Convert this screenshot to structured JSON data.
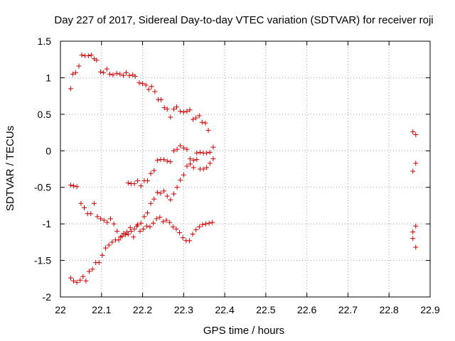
{
  "chart_data": {
    "type": "scatter",
    "title": "Day 227 of 2017, Sidereal Day-to-day VTEC variation (SDTVAR) for receiver roji",
    "xlabel": "GPS time / hours",
    "ylabel": "SDTVAR / TECUs",
    "xlim": [
      22,
      22.9
    ],
    "ylim": [
      -2,
      1.5
    ],
    "x_ticks": [
      "22",
      "22.1",
      "22.2",
      "22.3",
      "22.4",
      "22.5",
      "22.6",
      "22.7",
      "22.8",
      "22.9"
    ],
    "y_ticks": [
      "-2",
      "-1.5",
      "-1",
      "-0.5",
      "0",
      "0.5",
      "1",
      "1.5"
    ],
    "grid": true,
    "marker": "+",
    "marker_color": "#cc0000",
    "series": [
      {
        "points": [
          [
            22.025,
            0.85
          ],
          [
            22.03,
            1.05
          ],
          [
            22.037,
            1.07
          ],
          [
            22.045,
            1.16
          ],
          [
            22.052,
            1.31
          ],
          [
            22.06,
            1.3
          ],
          [
            22.068,
            1.3
          ],
          [
            22.075,
            1.31
          ],
          [
            22.082,
            1.26
          ],
          [
            22.088,
            1.24
          ],
          [
            22.098,
            1.08
          ],
          [
            22.105,
            1.07
          ],
          [
            22.113,
            1.12
          ],
          [
            22.12,
            1.05
          ],
          [
            22.128,
            1.04
          ],
          [
            22.137,
            1.06
          ],
          [
            22.145,
            1.05
          ],
          [
            22.153,
            1.03
          ],
          [
            22.16,
            1.07
          ],
          [
            22.168,
            1.03
          ],
          [
            22.176,
            1.04
          ],
          [
            22.182,
            1.02
          ],
          [
            22.192,
            0.93
          ],
          [
            22.2,
            0.92
          ],
          [
            22.208,
            0.9
          ],
          [
            22.215,
            0.84
          ],
          [
            22.222,
            0.88
          ],
          [
            22.23,
            0.81
          ],
          [
            22.238,
            0.7
          ],
          [
            22.245,
            0.7
          ],
          [
            22.253,
            0.59
          ],
          [
            22.26,
            0.57
          ],
          [
            22.268,
            0.46
          ],
          [
            22.276,
            0.57
          ],
          [
            22.283,
            0.6
          ],
          [
            22.292,
            0.54
          ],
          [
            22.3,
            0.53
          ],
          [
            22.308,
            0.54
          ],
          [
            22.315,
            0.56
          ],
          [
            22.323,
            0.43
          ],
          [
            22.33,
            0.45
          ],
          [
            22.338,
            0.48
          ],
          [
            22.345,
            0.39
          ],
          [
            22.353,
            0.38
          ],
          [
            22.36,
            0.28
          ]
        ]
      },
      {
        "points": [
          [
            22.025,
            -1.74
          ],
          [
            22.032,
            -1.78
          ],
          [
            22.04,
            -1.8
          ],
          [
            22.048,
            -1.77
          ],
          [
            22.055,
            -1.72
          ],
          [
            22.062,
            -1.78
          ],
          [
            22.07,
            -1.65
          ],
          [
            22.078,
            -1.62
          ],
          [
            22.086,
            -1.53
          ],
          [
            22.094,
            -1.53
          ],
          [
            22.102,
            -1.43
          ],
          [
            22.11,
            -1.33
          ],
          [
            22.118,
            -1.29
          ],
          [
            22.126,
            -1.25
          ],
          [
            22.134,
            -1.22
          ],
          [
            22.142,
            -1.22
          ],
          [
            22.15,
            -1.17
          ],
          [
            22.158,
            -1.15
          ],
          [
            22.165,
            -1.14
          ],
          [
            22.172,
            -1.1
          ],
          [
            22.18,
            -1.07
          ],
          [
            22.188,
            -1.01
          ],
          [
            22.196,
            -0.99
          ],
          [
            22.204,
            -0.9
          ],
          [
            22.212,
            -0.85
          ],
          [
            22.22,
            -0.72
          ],
          [
            22.228,
            -0.66
          ],
          [
            22.236,
            -0.57
          ],
          [
            22.244,
            -0.58
          ],
          [
            22.252,
            -0.55
          ],
          [
            22.26,
            -0.62
          ],
          [
            22.268,
            -0.67
          ],
          [
            22.276,
            -0.59
          ],
          [
            22.284,
            -0.5
          ],
          [
            22.292,
            -0.4
          ],
          [
            22.3,
            -0.33
          ],
          [
            22.308,
            -0.21
          ],
          [
            22.316,
            -0.18
          ],
          [
            22.324,
            -0.23
          ],
          [
            22.332,
            -0.12
          ],
          [
            22.34,
            -0.25
          ],
          [
            22.348,
            -0.25
          ],
          [
            22.356,
            -0.23
          ],
          [
            22.364,
            -0.17
          ],
          [
            22.372,
            -0.11
          ]
        ]
      },
      {
        "points": [
          [
            22.025,
            -0.47
          ],
          [
            22.032,
            -0.48
          ],
          [
            22.04,
            -0.49
          ],
          [
            22.05,
            -0.72
          ],
          [
            22.058,
            -0.78
          ],
          [
            22.066,
            -0.86
          ],
          [
            22.074,
            -0.86
          ],
          [
            22.082,
            -0.72
          ],
          [
            22.09,
            -0.9
          ],
          [
            22.098,
            -0.93
          ],
          [
            22.106,
            -0.95
          ],
          [
            22.114,
            -0.98
          ],
          [
            22.122,
            -0.93
          ],
          [
            22.13,
            -1.0
          ],
          [
            22.138,
            -1.1
          ],
          [
            22.146,
            -1.18
          ],
          [
            22.154,
            -1.13
          ],
          [
            22.162,
            -1.11
          ],
          [
            22.17,
            -1.05
          ],
          [
            22.178,
            -1.18
          ],
          [
            22.186,
            -1.03
          ],
          [
            22.194,
            -1.1
          ],
          [
            22.202,
            -1.07
          ],
          [
            22.21,
            -1.03
          ],
          [
            22.218,
            -1.04
          ],
          [
            22.226,
            -0.99
          ],
          [
            22.234,
            -0.93
          ],
          [
            22.242,
            -0.91
          ],
          [
            22.25,
            -0.97
          ],
          [
            22.258,
            -0.95
          ],
          [
            22.266,
            -0.98
          ],
          [
            22.274,
            -1.04
          ],
          [
            22.282,
            -1.07
          ],
          [
            22.29,
            -1.12
          ],
          [
            22.298,
            -1.19
          ],
          [
            22.306,
            -1.23
          ],
          [
            22.314,
            -1.23
          ],
          [
            22.322,
            -1.14
          ],
          [
            22.33,
            -1.08
          ],
          [
            22.338,
            -1.04
          ],
          [
            22.346,
            -1.01
          ],
          [
            22.354,
            -1.0
          ],
          [
            22.362,
            -0.99
          ],
          [
            22.37,
            -0.98
          ]
        ]
      },
      {
        "points": [
          [
            22.165,
            -0.44
          ],
          [
            22.172,
            -0.45
          ],
          [
            22.18,
            -0.45
          ],
          [
            22.188,
            -0.41
          ],
          [
            22.196,
            -0.48
          ],
          [
            22.204,
            -0.41
          ],
          [
            22.212,
            -0.41
          ],
          [
            22.22,
            -0.31
          ],
          [
            22.228,
            -0.27
          ],
          [
            22.236,
            -0.13
          ],
          [
            22.244,
            -0.12
          ],
          [
            22.252,
            -0.12
          ],
          [
            22.26,
            -0.14
          ],
          [
            22.268,
            -0.15
          ],
          [
            22.276,
            0.0
          ],
          [
            22.284,
            0.02
          ],
          [
            22.292,
            0.07
          ],
          [
            22.3,
            0.04
          ],
          [
            22.308,
            0.02
          ],
          [
            22.316,
            -0.11
          ],
          [
            22.324,
            -0.13
          ],
          [
            22.332,
            -0.03
          ],
          [
            22.34,
            -0.02
          ],
          [
            22.348,
            -0.03
          ],
          [
            22.356,
            -0.03
          ],
          [
            22.364,
            -0.02
          ],
          [
            22.372,
            0.05
          ]
        ]
      },
      {
        "points": [
          [
            22.858,
            0.26
          ],
          [
            22.865,
            0.22
          ],
          [
            22.858,
            -0.28
          ],
          [
            22.865,
            -0.17
          ],
          [
            22.858,
            -1.11
          ],
          [
            22.865,
            -1.03
          ],
          [
            22.858,
            -1.2
          ],
          [
            22.865,
            -1.32
          ]
        ]
      }
    ]
  }
}
